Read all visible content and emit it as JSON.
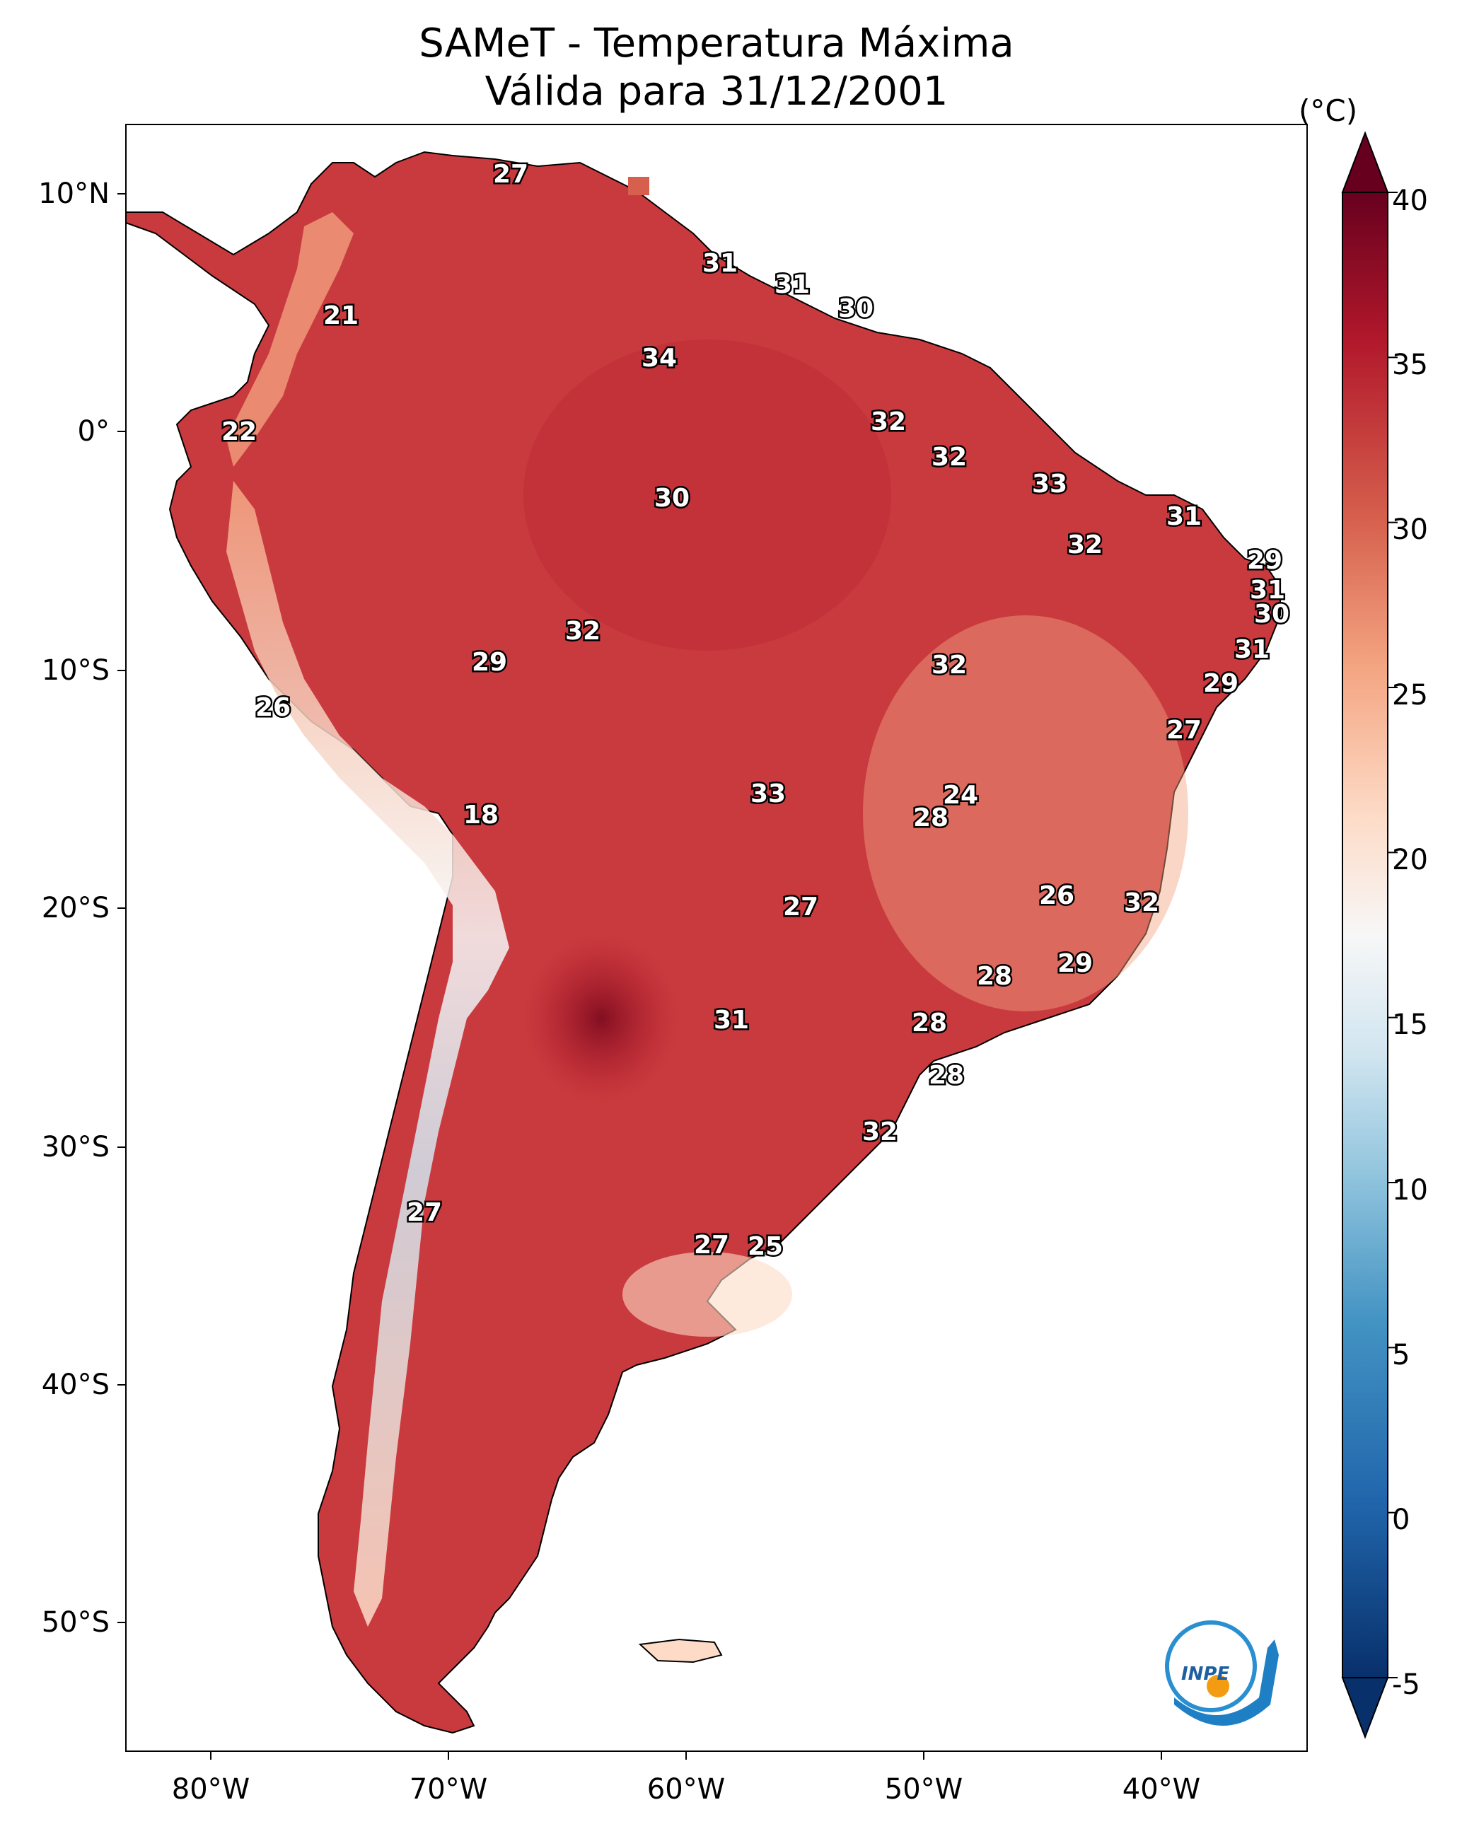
{
  "title_line1": "SAMeT - Temperatura Máxima",
  "title_line2": "Válida para 31/12/2001",
  "lat_labels": [
    "10°N",
    "0°",
    "10°S",
    "20°S",
    "30°S",
    "40°S",
    "50°S"
  ],
  "lon_labels": [
    "80°W",
    "70°W",
    "60°W",
    "50°W",
    "40°W"
  ],
  "colorbar": {
    "unit": "(°C)",
    "ticks": [
      "40",
      "35",
      "30",
      "25",
      "20",
      "15",
      "10",
      "5",
      "0",
      "-5"
    ],
    "range": [
      -5,
      40
    ],
    "colors": [
      "#08306b",
      "#2166ac",
      "#4393c3",
      "#92c5de",
      "#d1e5f0",
      "#f7f7f7",
      "#fddbc7",
      "#f4a582",
      "#d6604d",
      "#b2182b",
      "#67001f"
    ]
  },
  "logo_text": "INPE",
  "station_values": [
    {
      "v": "27"
    },
    {
      "v": "21"
    },
    {
      "v": "31"
    },
    {
      "v": "31"
    },
    {
      "v": "30"
    },
    {
      "v": "34"
    },
    {
      "v": "22"
    },
    {
      "v": "32"
    },
    {
      "v": "32"
    },
    {
      "v": "30"
    },
    {
      "v": "33"
    },
    {
      "v": "31"
    },
    {
      "v": "32"
    },
    {
      "v": "29"
    },
    {
      "v": "31"
    },
    {
      "v": "30"
    },
    {
      "v": "32"
    },
    {
      "v": "31"
    },
    {
      "v": "32"
    },
    {
      "v": "29"
    },
    {
      "v": "29"
    },
    {
      "v": "26"
    },
    {
      "v": "27"
    },
    {
      "v": "24"
    },
    {
      "v": "18"
    },
    {
      "v": "33"
    },
    {
      "v": "28"
    },
    {
      "v": "26"
    },
    {
      "v": "32"
    },
    {
      "v": "27"
    },
    {
      "v": "29"
    },
    {
      "v": "28"
    },
    {
      "v": "31"
    },
    {
      "v": "28"
    },
    {
      "v": "28"
    },
    {
      "v": "32"
    },
    {
      "v": "27"
    },
    {
      "v": "27"
    },
    {
      "v": "25"
    }
  ]
}
